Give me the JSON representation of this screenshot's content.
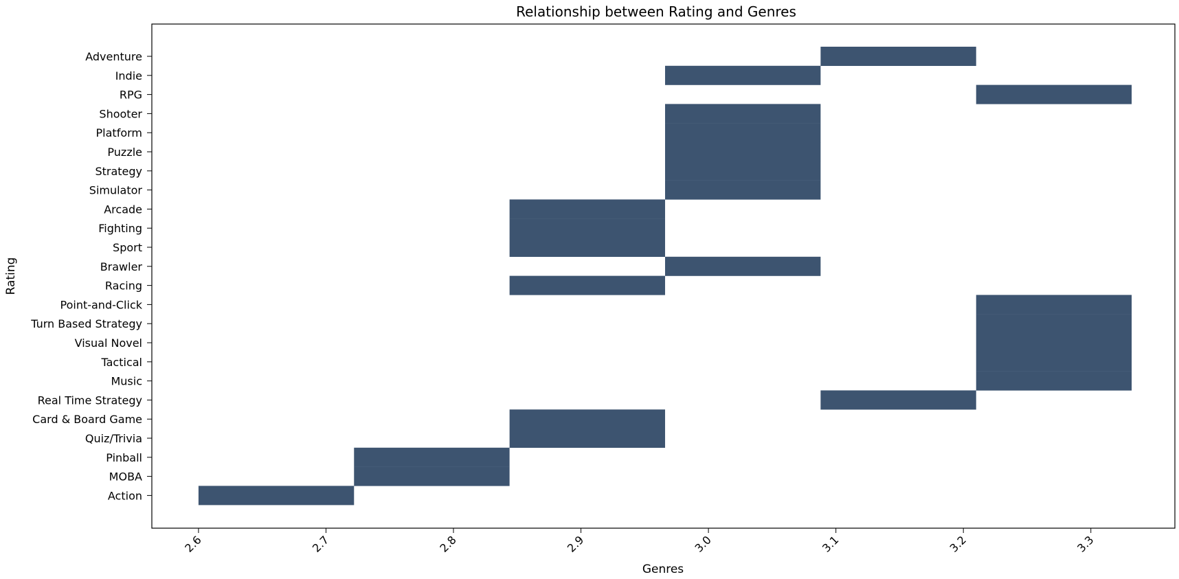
{
  "chart_data": {
    "type": "heatmap",
    "title": "Relationship between Rating and Genres",
    "xlabel": "Genres",
    "ylabel": "Rating",
    "xlim": [
      2.5634,
      3.3659
    ],
    "x_ticks": [
      "2.6",
      "2.7",
      "2.8",
      "2.9",
      "3.0",
      "3.1",
      "3.2",
      "3.3"
    ],
    "x_tick_values": [
      2.6,
      2.7,
      2.8,
      2.9,
      3.0,
      3.1,
      3.2,
      3.3
    ],
    "bar_color": "#3d5470",
    "bars": [
      {
        "category": "Adventure",
        "start": 3.088,
        "end": 3.21
      },
      {
        "category": "Indie",
        "start": 2.966,
        "end": 3.088
      },
      {
        "category": "RPG",
        "start": 3.21,
        "end": 3.332
      },
      {
        "category": "Shooter",
        "start": 2.966,
        "end": 3.088
      },
      {
        "category": "Platform",
        "start": 2.966,
        "end": 3.088
      },
      {
        "category": "Puzzle",
        "start": 2.966,
        "end": 3.088
      },
      {
        "category": "Strategy",
        "start": 2.966,
        "end": 3.088
      },
      {
        "category": "Simulator",
        "start": 2.966,
        "end": 3.088
      },
      {
        "category": "Arcade",
        "start": 2.844,
        "end": 2.966
      },
      {
        "category": "Fighting",
        "start": 2.844,
        "end": 2.966
      },
      {
        "category": "Sport",
        "start": 2.844,
        "end": 2.966
      },
      {
        "category": "Brawler",
        "start": 2.966,
        "end": 3.088
      },
      {
        "category": "Racing",
        "start": 2.844,
        "end": 2.966
      },
      {
        "category": "Point-and-Click",
        "start": 3.21,
        "end": 3.332
      },
      {
        "category": "Turn Based Strategy",
        "start": 3.21,
        "end": 3.332
      },
      {
        "category": "Visual Novel",
        "start": 3.21,
        "end": 3.332
      },
      {
        "category": "Tactical",
        "start": 3.21,
        "end": 3.332
      },
      {
        "category": "Music",
        "start": 3.21,
        "end": 3.332
      },
      {
        "category": "Real Time Strategy",
        "start": 3.088,
        "end": 3.21
      },
      {
        "category": "Card & Board Game",
        "start": 2.844,
        "end": 2.966
      },
      {
        "category": "Quiz/Trivia",
        "start": 2.844,
        "end": 2.966
      },
      {
        "category": "Pinball",
        "start": 2.722,
        "end": 2.844
      },
      {
        "category": "MOBA",
        "start": 2.722,
        "end": 2.844
      },
      {
        "category": "Action",
        "start": 2.6,
        "end": 2.722
      }
    ]
  }
}
